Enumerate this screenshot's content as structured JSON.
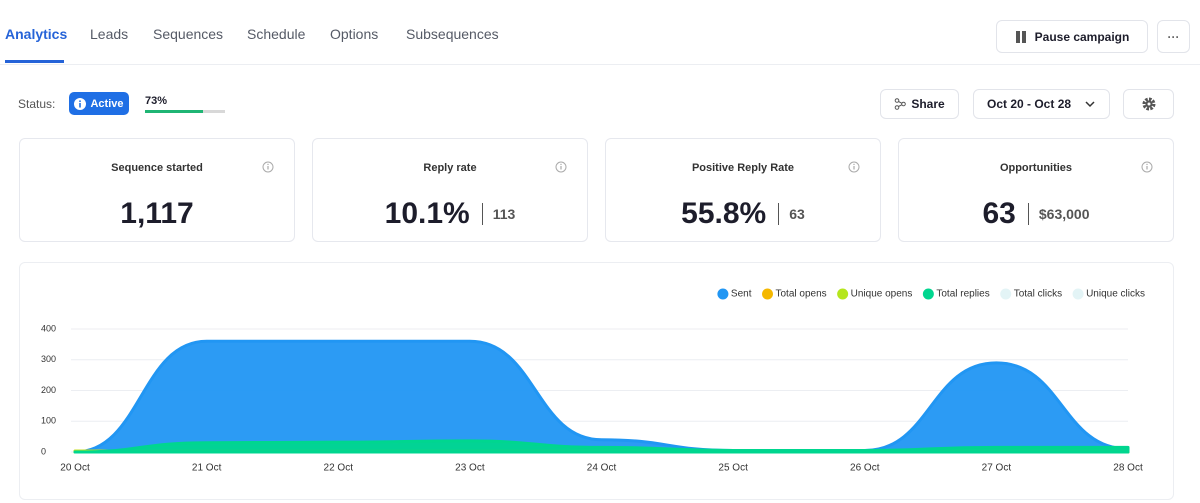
{
  "tabs": [
    "Analytics",
    "Leads",
    "Sequences",
    "Schedule",
    "Options",
    "Subsequences"
  ],
  "actions": {
    "pause": "Pause campaign",
    "more": "···"
  },
  "status": {
    "label": "Status:",
    "badge": "Active",
    "progress_value": 73,
    "progress_label": "73%"
  },
  "toolbar": {
    "share": "Share",
    "date_range": "Oct 20 - Oct 28"
  },
  "cards": [
    {
      "title": "Sequence started",
      "value": "1,117"
    },
    {
      "title": "Reply rate",
      "value": "10.1%",
      "secondary": "113"
    },
    {
      "title": "Positive Reply Rate",
      "value": "55.8%",
      "secondary": "63"
    },
    {
      "title": "Opportunities",
      "value": "63",
      "secondary": "$63,000"
    }
  ],
  "chart_data": {
    "type": "area",
    "categories": [
      "20 Oct",
      "21 Oct",
      "22 Oct",
      "23 Oct",
      "24 Oct",
      "25 Oct",
      "26 Oct",
      "27 Oct",
      "28 Oct"
    ],
    "series": [
      {
        "name": "Sent",
        "color": "#2196f3",
        "values": [
          0,
          360,
          360,
          360,
          40,
          5,
          5,
          290,
          10
        ]
      },
      {
        "name": "Total opens",
        "color": "#f5b800",
        "values": [
          3,
          3,
          3,
          3,
          3,
          3,
          3,
          3,
          3
        ]
      },
      {
        "name": "Unique opens",
        "color": "#b5e61d",
        "values": [
          3,
          3,
          3,
          3,
          3,
          3,
          3,
          3,
          3
        ]
      },
      {
        "name": "Total replies",
        "color": "#00d68f",
        "values": [
          0,
          30,
          32,
          36,
          15,
          5,
          5,
          15,
          15
        ]
      },
      {
        "name": "Total clicks",
        "color": "#e3f4f6",
        "values": [
          0,
          0,
          0,
          0,
          0,
          0,
          0,
          0,
          0
        ],
        "hidden": true
      },
      {
        "name": "Unique clicks",
        "color": "#e3f4f6",
        "values": [
          0,
          0,
          0,
          0,
          0,
          0,
          0,
          0,
          0
        ],
        "hidden": true
      }
    ],
    "ylim": [
      0,
      400
    ],
    "yticks": [
      0,
      100,
      200,
      300,
      400
    ],
    "grid": true,
    "legend": "top-right"
  }
}
